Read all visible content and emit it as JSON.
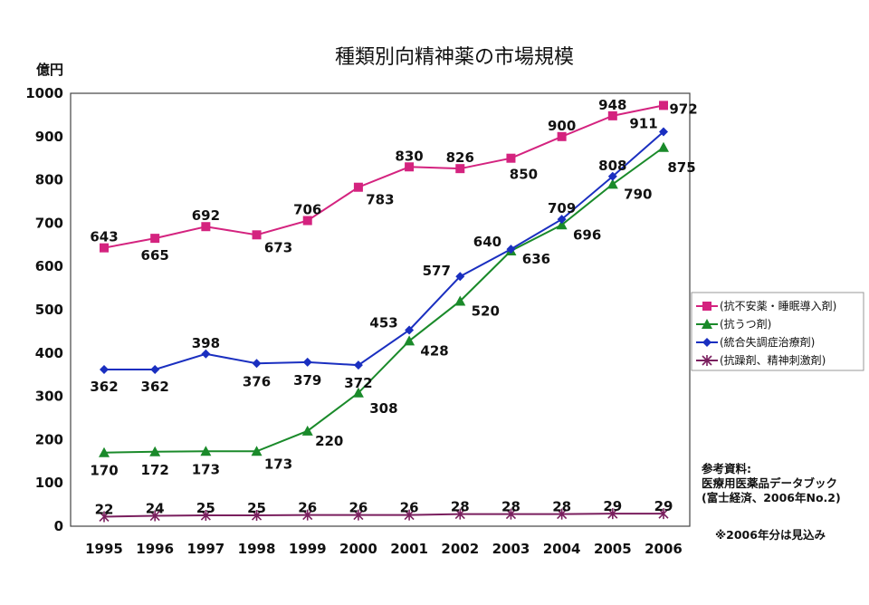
{
  "chart_data": {
    "type": "line",
    "title": "種類別向精神薬の市場規模",
    "ylabel": "億円",
    "xlabel": "",
    "ylim": [
      0,
      1000
    ],
    "yticks": [
      0,
      100,
      200,
      300,
      400,
      500,
      600,
      700,
      800,
      900,
      1000
    ],
    "grid": false,
    "legend_position": "right",
    "categories": [
      "1995",
      "1996",
      "1997",
      "1998",
      "1999",
      "2000",
      "2001",
      "2002",
      "2003",
      "2004",
      "2005",
      "2006"
    ],
    "series": [
      {
        "name": "(抗不安薬・睡眠導入剤)",
        "color": "#d4237f",
        "marker": "square",
        "values": [
          643,
          665,
          692,
          673,
          706,
          783,
          830,
          826,
          850,
          900,
          948,
          972
        ]
      },
      {
        "name": "(抗うつ剤)",
        "color": "#1a8a2a",
        "marker": "triangle",
        "values": [
          170,
          172,
          173,
          173,
          220,
          308,
          428,
          520,
          636,
          696,
          790,
          875
        ]
      },
      {
        "name": "(統合失調症治療剤)",
        "color": "#1a2fc0",
        "marker": "diamond",
        "values": [
          362,
          362,
          398,
          376,
          379,
          372,
          453,
          577,
          640,
          709,
          808,
          911
        ]
      },
      {
        "name": "(抗躁剤、精神刺激剤)",
        "color": "#7a1f5e",
        "marker": "asterisk",
        "values": [
          22,
          24,
          25,
          25,
          26,
          26,
          26,
          28,
          28,
          28,
          29,
          29
        ]
      }
    ],
    "source_lines": [
      "参考資料:",
      "医療用医薬品データブック",
      "(富士経済、2006年No.2)"
    ],
    "footnote": "※2006年分は見込み"
  }
}
